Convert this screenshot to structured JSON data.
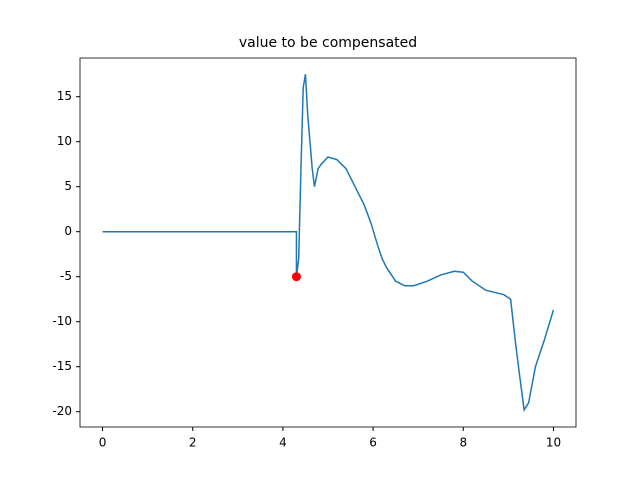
{
  "chart_data": {
    "type": "line",
    "title": "value to be compensated",
    "xlim": [
      -0.5,
      10.5
    ],
    "xticks": [
      0,
      2,
      4,
      6,
      8,
      10
    ],
    "ylim": [
      -21.7,
      19.3
    ],
    "yticks": [
      -20,
      -15,
      -10,
      -5,
      0,
      5,
      10,
      15
    ],
    "series": [
      {
        "type": "line",
        "color": "#1f77b4",
        "x": [
          0,
          4.3,
          4.3,
          4.35,
          4.4,
          4.45,
          4.5,
          4.55,
          4.6,
          4.65,
          4.7,
          4.78,
          4.85,
          5.0,
          5.2,
          5.4,
          5.6,
          5.8,
          5.95,
          6.1,
          6.2,
          6.3,
          6.5,
          6.7,
          6.9,
          7.2,
          7.5,
          7.8,
          8.0,
          8.2,
          8.5,
          8.9,
          9.05,
          9.15,
          9.25,
          9.35,
          9.45,
          9.6,
          9.8,
          10
        ],
        "values": [
          0,
          0,
          -5,
          -3,
          7,
          16,
          17.5,
          13,
          10,
          7,
          5,
          7,
          7.5,
          8.3,
          8,
          7,
          5,
          3,
          1,
          -1.5,
          -3,
          -4,
          -5.5,
          -6,
          -6,
          -5.5,
          -4.8,
          -4.4,
          -4.5,
          -5.5,
          -6.5,
          -7,
          -7.5,
          -12,
          -16,
          -19.8,
          -19,
          -15,
          -12,
          -8.7
        ]
      },
      {
        "type": "scatter",
        "color": "#ff0000",
        "x": [
          4.3
        ],
        "values": [
          -5
        ]
      }
    ]
  }
}
